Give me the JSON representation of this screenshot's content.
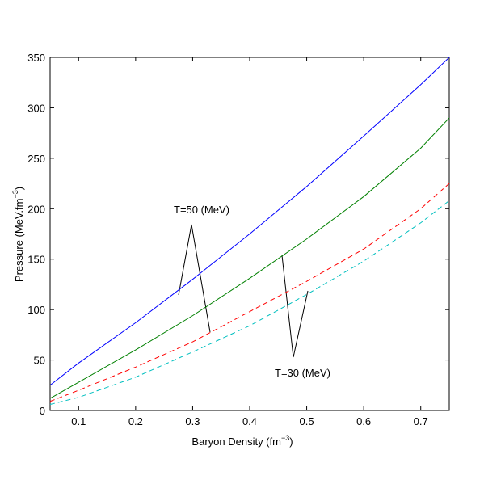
{
  "chart_data": {
    "type": "line",
    "xlabel": {
      "text": "Baryon Density (fm",
      "sup": "−3",
      "end": ")"
    },
    "ylabel": {
      "text": "Pressure (MeV.fm",
      "sup": "−3",
      "end": ")"
    },
    "x": [
      0.05,
      0.1,
      0.2,
      0.3,
      0.4,
      0.5,
      0.6,
      0.7,
      0.75
    ],
    "series": [
      {
        "color": "#0000ff",
        "linestyle": "solid",
        "values": [
          25,
          47,
          87,
          130,
          175,
          222,
          272,
          323,
          350
        ]
      },
      {
        "color": "#008000",
        "linestyle": "solid",
        "values": [
          12,
          28,
          60,
          94,
          131,
          170,
          212,
          260,
          290
        ]
      },
      {
        "color": "#ff0000",
        "linestyle": "dashed",
        "values": [
          9,
          20,
          43,
          68,
          98,
          128,
          160,
          200,
          225
        ]
      },
      {
        "color": "#00bfbf",
        "linestyle": "dashed",
        "values": [
          6,
          13,
          33,
          58,
          84,
          115,
          148,
          186,
          208
        ]
      }
    ],
    "annotations": [
      "T=50 (MeV)",
      "T=30 (MeV)"
    ],
    "xlim": [
      0.05,
      0.75
    ],
    "xticks": [
      0.1,
      0.2,
      0.3,
      0.4,
      0.5,
      0.6,
      0.7
    ],
    "ylim": [
      0,
      350
    ],
    "yticks": [
      0,
      50,
      100,
      150,
      200,
      250,
      300,
      350
    ],
    "grid": false
  }
}
